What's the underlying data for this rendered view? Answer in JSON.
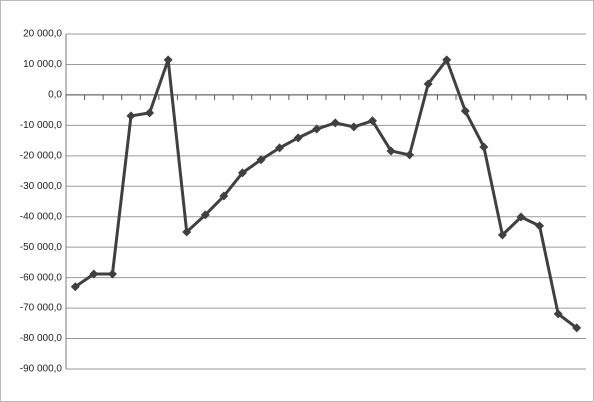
{
  "chart_data": {
    "type": "line",
    "categories": [
      null,
      null,
      null,
      null,
      null,
      null,
      null,
      null,
      null,
      null,
      null,
      null,
      null,
      null,
      null,
      null,
      null,
      null,
      null,
      null,
      null,
      null,
      null,
      null,
      null,
      null,
      null,
      null
    ],
    "series": [
      {
        "color": "#404040",
        "values": [
          -63000,
          -58800,
          -58800,
          -6900,
          -5900,
          11500,
          -45000,
          -39400,
          -33200,
          -25600,
          -21300,
          -17400,
          -14100,
          -11200,
          -9200,
          -10500,
          -8500,
          -18400,
          -19700,
          3600,
          11500,
          -5300,
          -17100,
          -46000,
          -40100,
          -43000,
          -71900,
          -76500
        ]
      }
    ],
    "ylim": [
      -90000,
      20000
    ],
    "yticks": [
      {
        "value": -90000,
        "label": "-90 000,0"
      },
      {
        "value": -80000,
        "label": "-80 000,0"
      },
      {
        "value": -70000,
        "label": "-70 000,0"
      },
      {
        "value": -60000,
        "label": "-60 000,0"
      },
      {
        "value": -50000,
        "label": "-50 000,0"
      },
      {
        "value": -40000,
        "label": "-40 000,0"
      },
      {
        "value": -30000,
        "label": "-30 000,0"
      },
      {
        "value": -20000,
        "label": "-20 000,0"
      },
      {
        "value": -10000,
        "label": "-10 000,0"
      },
      {
        "value": 0,
        "label": "0,0"
      },
      {
        "value": 10000,
        "label": "10 000,0"
      },
      {
        "value": 20000,
        "label": "20 000,0"
      }
    ],
    "grid": true
  }
}
